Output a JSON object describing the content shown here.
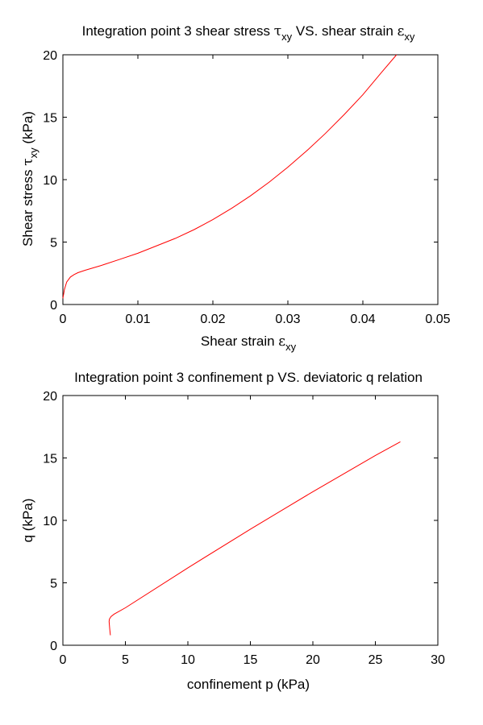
{
  "chart_data": [
    {
      "type": "line",
      "title": {
        "pre": "Integration point 3 shear stress ",
        "sym1": "τ",
        "sub1": "xy",
        "mid": " VS. shear strain ",
        "sym2": "ε",
        "sub2": "xy"
      },
      "xlabel": {
        "pre": "Shear strain ",
        "sym": "ε",
        "sub": "xy"
      },
      "ylabel": {
        "pre": "Shear stress ",
        "sym": "τ",
        "sub": "xy",
        "post": " (kPa)"
      },
      "xlim": [
        0,
        0.05
      ],
      "ylim": [
        0,
        20
      ],
      "xticks": [
        "0",
        "0.01",
        "0.02",
        "0.03",
        "0.04",
        "0.05"
      ],
      "yticks": [
        "0",
        "5",
        "10",
        "15",
        "20"
      ],
      "grid": false,
      "series": [
        {
          "color": "#ff0000",
          "x": [
            0,
            0.0002,
            0.0005,
            0.001,
            0.0015,
            0.002,
            0.003,
            0.005,
            0.0075,
            0.01,
            0.0125,
            0.015,
            0.0175,
            0.02,
            0.0225,
            0.025,
            0.0275,
            0.03,
            0.0325,
            0.035,
            0.0375,
            0.04,
            0.0425,
            0.0445
          ],
          "y": [
            0.5,
            1.2,
            1.8,
            2.2,
            2.4,
            2.55,
            2.75,
            3.1,
            3.6,
            4.1,
            4.7,
            5.3,
            6.0,
            6.8,
            7.7,
            8.7,
            9.8,
            11.0,
            12.3,
            13.7,
            15.2,
            16.8,
            18.6,
            20.0
          ]
        }
      ]
    },
    {
      "type": "line",
      "title": "Integration point 3 confinement p VS. deviatoric q relation",
      "xlabel": "confinement p (kPa)",
      "ylabel": "q (kPa)",
      "xlim": [
        0,
        30
      ],
      "ylim": [
        0,
        20
      ],
      "xticks": [
        "0",
        "5",
        "10",
        "15",
        "20",
        "25",
        "30"
      ],
      "yticks": [
        "0",
        "5",
        "10",
        "15",
        "20"
      ],
      "grid": false,
      "series": [
        {
          "color": "#ff0000",
          "x": [
            3.8,
            3.75,
            3.7,
            3.72,
            3.85,
            4.1,
            5.0,
            10.0,
            15.0,
            20.0,
            25.0,
            27.0
          ],
          "y": [
            0.8,
            1.3,
            1.9,
            2.1,
            2.3,
            2.5,
            3.0,
            6.2,
            9.3,
            12.3,
            15.2,
            16.3
          ]
        }
      ]
    }
  ]
}
